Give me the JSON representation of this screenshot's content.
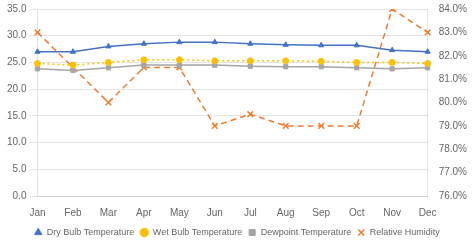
{
  "chart_data": {
    "type": "line",
    "categories": [
      "Jan",
      "Feb",
      "Mar",
      "Apr",
      "May",
      "Jun",
      "Jul",
      "Aug",
      "Sep",
      "Oct",
      "Nov",
      "Dec"
    ],
    "series": [
      {
        "name": "Dry Bulb Temperature",
        "color": "#4472C4",
        "marker": "triangle",
        "line_style": "solid",
        "values": [
          27.0,
          27.0,
          28.0,
          28.5,
          28.8,
          28.8,
          28.5,
          28.3,
          28.2,
          28.2,
          27.3,
          27.0
        ]
      },
      {
        "name": "Wet Bulb Temperature",
        "color": "#FFC000",
        "marker": "circle",
        "line_style": "dotted",
        "values": [
          24.8,
          24.5,
          25.0,
          25.5,
          25.5,
          25.3,
          25.3,
          25.3,
          25.2,
          25.0,
          25.0,
          24.8
        ]
      },
      {
        "name": "Dewpoint Temperature",
        "color": "#A5A5A5",
        "marker": "square",
        "line_style": "solid",
        "values": [
          23.8,
          23.5,
          24.0,
          24.5,
          24.5,
          24.5,
          24.3,
          24.2,
          24.2,
          24.0,
          23.8,
          24.0
        ]
      },
      {
        "name": "Relative Humidity",
        "color": "#ED7D31",
        "marker": "x",
        "line_style": "dashed",
        "axis": "y2",
        "values": [
          83.0,
          81.5,
          80.0,
          81.5,
          81.5,
          79.0,
          79.5,
          79.0,
          79.0,
          79.0,
          84.0,
          83.0
        ]
      }
    ],
    "ylim": [
      0,
      35
    ],
    "yticks": [
      {
        "value": 0,
        "label": "0.0"
      },
      {
        "value": 5,
        "label": "5.0"
      },
      {
        "value": 10,
        "label": "10.0"
      },
      {
        "value": 15,
        "label": "15.0"
      },
      {
        "value": 20,
        "label": "20.0"
      },
      {
        "value": 25,
        "label": "25.0"
      },
      {
        "value": 30,
        "label": "30.0"
      },
      {
        "value": 35,
        "label": "35.0"
      }
    ],
    "y2lim": [
      76,
      84
    ],
    "y2ticks": [
      {
        "value": 76,
        "label": "76.0%"
      },
      {
        "value": 77,
        "label": "77.0%"
      },
      {
        "value": 78,
        "label": "78.0%"
      },
      {
        "value": 79,
        "label": "79.0%"
      },
      {
        "value": 80,
        "label": "80.0%"
      },
      {
        "value": 81,
        "label": "81.0%"
      },
      {
        "value": 82,
        "label": "82.0%"
      },
      {
        "value": 83,
        "label": "83.0%"
      },
      {
        "value": 84,
        "label": "84.0%"
      }
    ],
    "grid": true,
    "legend": "bottom"
  }
}
